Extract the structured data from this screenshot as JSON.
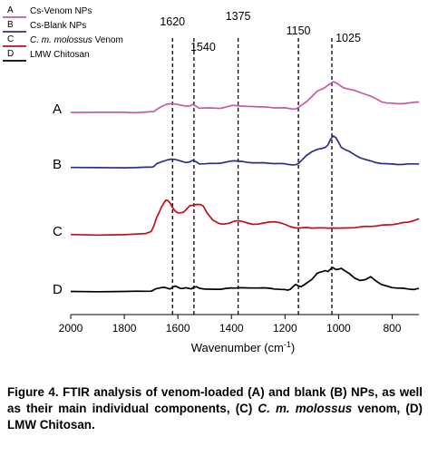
{
  "chart_data": {
    "type": "line",
    "title": "",
    "xlabel": "Wavenumber (cm",
    "xlabel_sup": "-1",
    "xlabel_close": ")",
    "ylabel": "",
    "xlim": [
      2000,
      700
    ],
    "x_reversed": true,
    "x_ticks": [
      "2000",
      "1800",
      "1600",
      "1400",
      "1200",
      "1000",
      "800"
    ],
    "grid": false,
    "legend": {
      "placement": "top-left",
      "entries": [
        {
          "letter": "A",
          "label": "Cs-Venom NPs",
          "color": "#c45aa8"
        },
        {
          "letter": "B",
          "label": "Cs-Blank NPs",
          "color": "#2b2f8c"
        },
        {
          "letter": "C",
          "label_italic": "C. m. molossus",
          "label_rest": " Venom",
          "color": "#c0101a"
        },
        {
          "letter": "D",
          "label": "LMW Chitosan",
          "color": "#000000"
        }
      ]
    },
    "reference_lines": [
      {
        "x": 1620,
        "label": "1620"
      },
      {
        "x": 1540,
        "label": "1540"
      },
      {
        "x": 1375,
        "label": "1375"
      },
      {
        "x": 1150,
        "label": "1150"
      },
      {
        "x": 1025,
        "label": "1025"
      }
    ],
    "series": [
      {
        "name": "A",
        "color": "#c45aa8",
        "x": [
          2000,
          1900,
          1800,
          1760,
          1720,
          1700,
          1690,
          1680,
          1660,
          1640,
          1625,
          1610,
          1590,
          1570,
          1555,
          1545,
          1530,
          1520,
          1500,
          1480,
          1460,
          1440,
          1420,
          1400,
          1390,
          1375,
          1360,
          1340,
          1320,
          1300,
          1280,
          1260,
          1240,
          1220,
          1200,
          1190,
          1175,
          1160,
          1150,
          1140,
          1120,
          1100,
          1080,
          1060,
          1050,
          1040,
          1030,
          1020,
          1010,
          1000,
          990,
          980,
          960,
          940,
          920,
          900,
          880,
          860,
          840,
          820,
          800,
          780,
          760,
          740,
          720,
          700
        ],
        "y": [
          0.2,
          0.19,
          0.21,
          0.2,
          0.22,
          0.24,
          0.27,
          0.42,
          0.62,
          0.8,
          0.86,
          0.82,
          0.72,
          0.66,
          0.7,
          0.78,
          0.62,
          0.52,
          0.54,
          0.52,
          0.5,
          0.52,
          0.6,
          0.68,
          0.72,
          0.7,
          0.66,
          0.62,
          0.64,
          0.62,
          0.6,
          0.57,
          0.55,
          0.54,
          0.52,
          0.5,
          0.48,
          0.45,
          0.55,
          0.72,
          1.0,
          1.35,
          1.75,
          1.95,
          2.05,
          2.18,
          2.32,
          2.48,
          2.38,
          2.25,
          2.12,
          2.02,
          1.9,
          1.8,
          1.68,
          1.55,
          1.38,
          1.2,
          1.0,
          0.9,
          0.86,
          0.84,
          0.86,
          0.88,
          0.92,
          0.98
        ]
      },
      {
        "name": "B",
        "color": "#2b2f8c",
        "x": [
          2000,
          1900,
          1800,
          1760,
          1720,
          1700,
          1690,
          1680,
          1660,
          1640,
          1625,
          1610,
          1590,
          1570,
          1555,
          1545,
          1530,
          1520,
          1500,
          1480,
          1460,
          1440,
          1420,
          1400,
          1390,
          1375,
          1360,
          1340,
          1320,
          1300,
          1280,
          1260,
          1240,
          1220,
          1200,
          1190,
          1175,
          1160,
          1150,
          1140,
          1120,
          1100,
          1080,
          1060,
          1050,
          1040,
          1030,
          1020,
          1010,
          1000,
          990,
          980,
          960,
          940,
          920,
          900,
          880,
          860,
          840,
          820,
          800,
          780,
          760,
          740,
          720,
          700
        ],
        "y": [
          0.2,
          0.2,
          0.21,
          0.21,
          0.22,
          0.24,
          0.3,
          0.48,
          0.62,
          0.78,
          0.84,
          0.8,
          0.68,
          0.6,
          0.64,
          0.72,
          0.62,
          0.5,
          0.48,
          0.5,
          0.52,
          0.55,
          0.6,
          0.68,
          0.72,
          0.7,
          0.64,
          0.58,
          0.58,
          0.56,
          0.55,
          0.53,
          0.52,
          0.5,
          0.48,
          0.46,
          0.42,
          0.4,
          0.5,
          0.72,
          1.1,
          1.35,
          1.55,
          1.65,
          1.68,
          1.85,
          2.3,
          2.55,
          2.4,
          2.05,
          1.72,
          1.58,
          1.38,
          1.15,
          0.95,
          0.8,
          0.68,
          0.58,
          0.52,
          0.48,
          0.46,
          0.45,
          0.45,
          0.46,
          0.48,
          0.5
        ]
      },
      {
        "name": "C",
        "color": "#c0101a",
        "x": [
          2000,
          1900,
          1800,
          1760,
          1720,
          1700,
          1690,
          1680,
          1670,
          1660,
          1650,
          1645,
          1640,
          1635,
          1630,
          1620,
          1610,
          1600,
          1590,
          1580,
          1570,
          1560,
          1555,
          1545,
          1530,
          1515,
          1505,
          1490,
          1470,
          1450,
          1440,
          1430,
          1410,
          1400,
          1390,
          1375,
          1360,
          1340,
          1320,
          1300,
          1280,
          1260,
          1240,
          1220,
          1200,
          1180,
          1160,
          1140,
          1120,
          1100,
          1080,
          1060,
          1040,
          1020,
          1000,
          980,
          960,
          940,
          920,
          900,
          880,
          860,
          840,
          820,
          800,
          780,
          760,
          740,
          720,
          700
        ],
        "y": [
          0.2,
          0.19,
          0.22,
          0.24,
          0.28,
          0.45,
          0.85,
          1.4,
          1.85,
          2.3,
          2.6,
          2.72,
          2.75,
          2.7,
          2.55,
          2.2,
          1.95,
          1.82,
          1.8,
          1.85,
          2.05,
          2.25,
          2.32,
          2.38,
          2.45,
          2.42,
          2.3,
          1.8,
          1.3,
          1.05,
          1.0,
          1.0,
          1.05,
          1.1,
          1.2,
          1.25,
          1.18,
          1.05,
          0.98,
          1.0,
          1.05,
          1.12,
          1.18,
          1.1,
          0.95,
          0.8,
          0.72,
          0.7,
          0.72,
          0.7,
          0.72,
          0.7,
          0.68,
          0.72,
          0.7,
          0.68,
          0.7,
          0.74,
          0.78,
          0.8,
          0.82,
          0.86,
          0.9,
          0.92,
          0.96,
          1.02,
          1.08,
          1.12,
          1.25,
          1.38
        ]
      },
      {
        "name": "D",
        "color": "#000000",
        "x": [
          2000,
          1900,
          1800,
          1750,
          1720,
          1700,
          1690,
          1680,
          1670,
          1660,
          1650,
          1640,
          1630,
          1620,
          1610,
          1600,
          1590,
          1580,
          1570,
          1560,
          1550,
          1540,
          1530,
          1520,
          1500,
          1480,
          1460,
          1440,
          1420,
          1400,
          1390,
          1375,
          1360,
          1340,
          1320,
          1300,
          1280,
          1260,
          1240,
          1220,
          1200,
          1190,
          1180,
          1170,
          1160,
          1150,
          1140,
          1130,
          1120,
          1100,
          1090,
          1080,
          1070,
          1060,
          1050,
          1040,
          1030,
          1025,
          1020,
          1010,
          1000,
          990,
          980,
          960,
          940,
          920,
          900,
          880,
          860,
          840,
          820,
          800,
          780,
          760,
          740,
          720,
          700
        ],
        "y": [
          0.3,
          0.3,
          0.3,
          0.3,
          0.32,
          0.34,
          0.4,
          0.5,
          0.56,
          0.6,
          0.58,
          0.54,
          0.5,
          0.6,
          0.68,
          0.62,
          0.54,
          0.52,
          0.56,
          0.54,
          0.5,
          0.6,
          0.64,
          0.55,
          0.48,
          0.45,
          0.46,
          0.48,
          0.52,
          0.54,
          0.56,
          0.58,
          0.56,
          0.55,
          0.57,
          0.56,
          0.55,
          0.54,
          0.5,
          0.45,
          0.42,
          0.4,
          0.48,
          0.65,
          0.8,
          0.72,
          0.66,
          0.75,
          0.9,
          1.2,
          1.4,
          1.62,
          1.72,
          1.78,
          1.82,
          1.75,
          1.95,
          2.08,
          2.02,
          1.9,
          1.96,
          2.0,
          1.85,
          1.62,
          1.3,
          1.1,
          1.15,
          1.4,
          1.08,
          0.8,
          0.7,
          0.6,
          0.55,
          0.52,
          0.48,
          0.46,
          0.52
        ]
      }
    ],
    "series_labels": [
      "A",
      "B",
      "C",
      "D"
    ]
  },
  "caption": {
    "part1": "Figure 4. FTIR analysis of venom-loaded (A) and blank (B) NPs, as well as their main individual components, (C) ",
    "italic": "C. m. molossus",
    "part2": " venom, (D) LMW Chitosan."
  }
}
